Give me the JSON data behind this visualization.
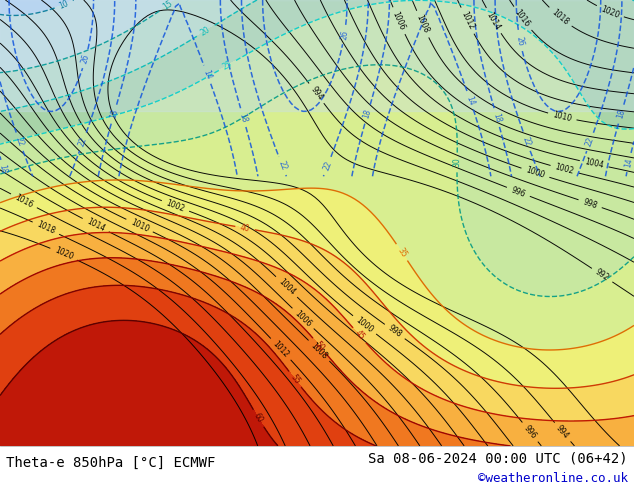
{
  "bottom_left_text": "Theta-e 850hPa [°C] ECMWF",
  "bottom_right_line1": "Sa 08-06-2024 00:00 UTC (06+42)",
  "bottom_right_line2": "©weatheronline.co.uk",
  "bottom_right_color": "#000000",
  "credit_color": "#0000cc",
  "map_bg": "#d4ecd4",
  "label_fontsize": 10,
  "credit_fontsize": 9,
  "fig_width": 6.34,
  "fig_height": 4.9,
  "dpi": 100,
  "bottom_bar_color": "#ffffff"
}
